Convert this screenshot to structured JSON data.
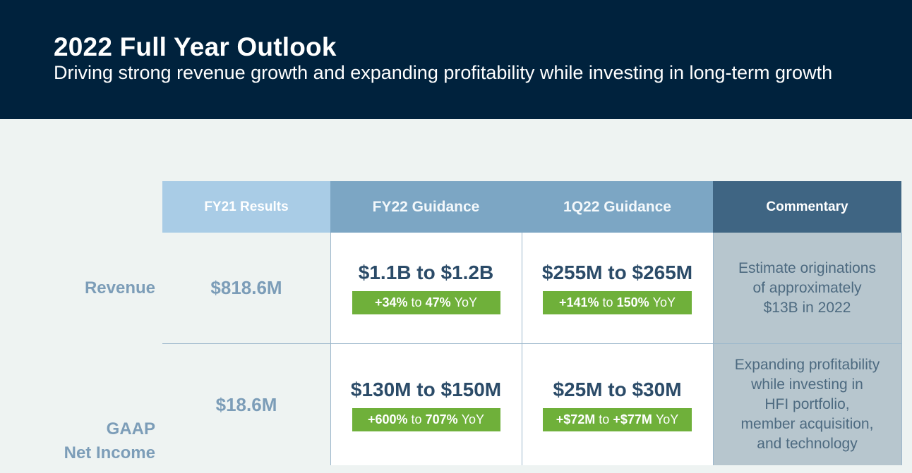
{
  "header": {
    "title": "2022 Full Year Outlook",
    "subtitle": "Driving strong revenue growth and expanding profitability while investing in long-term growth"
  },
  "table": {
    "columns": {
      "fy21": "FY21 Results",
      "fy22": "FY22 Guidance",
      "q122": "1Q22 Guidance",
      "commentary": "Commentary"
    },
    "rows": [
      {
        "label_line1": "Revenue",
        "fy21": "$818.6M",
        "fy22_value": "$1.1B to $1.2B",
        "fy22_growth": {
          "low": "+34%",
          "sep": "to",
          "high": "47%",
          "unit": "YoY"
        },
        "q122_value": "$255M to $265M",
        "q122_growth": {
          "low": "+141%",
          "sep": "to",
          "high": "150%",
          "unit": "YoY"
        },
        "commentary": [
          "Estimate originations",
          "of approximately",
          "$13B in 2022"
        ]
      },
      {
        "label_line1": "GAAP",
        "label_line2": "Net Income",
        "fy21": "$18.6M",
        "fy22_value": "$130M to $150M",
        "fy22_growth": {
          "low": "+600%",
          "sep": "to",
          "high": "707%",
          "unit": "YoY"
        },
        "q122_value": "$25M to $30M",
        "q122_growth": {
          "low": "+$72M",
          "sep": "to",
          "high": "+$77M",
          "unit": "YoY"
        },
        "commentary": [
          "Expanding profitability",
          "while investing in",
          "HFI portfolio,",
          "member acquisition,",
          "and technology"
        ]
      }
    ]
  },
  "colors": {
    "header_bg": "#00223d",
    "accent_green": "#6fb03a",
    "commentary_header": "#3f6583",
    "guidance_header": "#7ca6c4"
  }
}
